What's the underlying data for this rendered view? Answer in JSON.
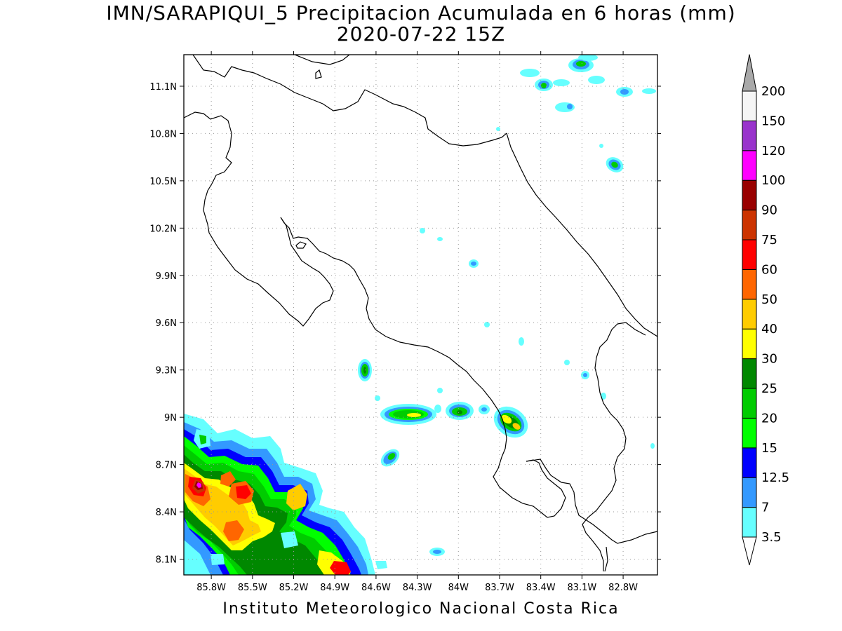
{
  "title": "IMN/SARAPIQUI_5 Precipitacion Acumulada en 6 horas (mm)",
  "subtitle": "2020-07-22 15Z",
  "footer": "Instituto Meteorologico Nacional Costa Rica",
  "map": {
    "lon_range": [
      -86.0,
      -82.55
    ],
    "lat_range": [
      8.0,
      11.3
    ],
    "lon_ticks": [
      {
        "value": -85.8,
        "label": "85.8W"
      },
      {
        "value": -85.5,
        "label": "85.5W"
      },
      {
        "value": -85.2,
        "label": "85.2W"
      },
      {
        "value": -84.9,
        "label": "84.9W"
      },
      {
        "value": -84.6,
        "label": "84.6W"
      },
      {
        "value": -84.3,
        "label": "84.3W"
      },
      {
        "value": -84.0,
        "label": "84W"
      },
      {
        "value": -83.7,
        "label": "83.7W"
      },
      {
        "value": -83.4,
        "label": "83.4W"
      },
      {
        "value": -83.1,
        "label": "83.1W"
      },
      {
        "value": -82.8,
        "label": "82.8W"
      }
    ],
    "lat_ticks": [
      {
        "value": 8.1,
        "label": "8.1N"
      },
      {
        "value": 8.4,
        "label": "8.4N"
      },
      {
        "value": 8.7,
        "label": "8.7N"
      },
      {
        "value": 9.0,
        "label": "9N"
      },
      {
        "value": 9.3,
        "label": "9.3N"
      },
      {
        "value": 9.6,
        "label": "9.6N"
      },
      {
        "value": 9.9,
        "label": "9.9N"
      },
      {
        "value": 10.2,
        "label": "10.2N"
      },
      {
        "value": 10.5,
        "label": "10.5N"
      },
      {
        "value": 10.8,
        "label": "10.8N"
      },
      {
        "value": 11.1,
        "label": "11.1N"
      }
    ],
    "gridlines": true
  },
  "colorbar": {
    "levels": [
      {
        "label": "3.5",
        "color": "#66ffff"
      },
      {
        "label": "7",
        "color": "#3399ff"
      },
      {
        "label": "12.5",
        "color": "#0000ff"
      },
      {
        "label": "15",
        "color": "#00ff00"
      },
      {
        "label": "20",
        "color": "#00cc00"
      },
      {
        "label": "25",
        "color": "#008800"
      },
      {
        "label": "30",
        "color": "#ffff00"
      },
      {
        "label": "40",
        "color": "#ffcc00"
      },
      {
        "label": "50",
        "color": "#ff6600"
      },
      {
        "label": "60",
        "color": "#ff0000"
      },
      {
        "label": "75",
        "color": "#cc3300"
      },
      {
        "label": "90",
        "color": "#990000"
      },
      {
        "label": "100",
        "color": "#ff00ff"
      },
      {
        "label": "120",
        "color": "#9933cc"
      },
      {
        "label": "150",
        "color": "#f5f5f5"
      },
      {
        "label": "200",
        "color": "#a9a9a9"
      }
    ],
    "low_end_color": "#ffffff",
    "high_end_color": "#a9a9a9"
  }
}
